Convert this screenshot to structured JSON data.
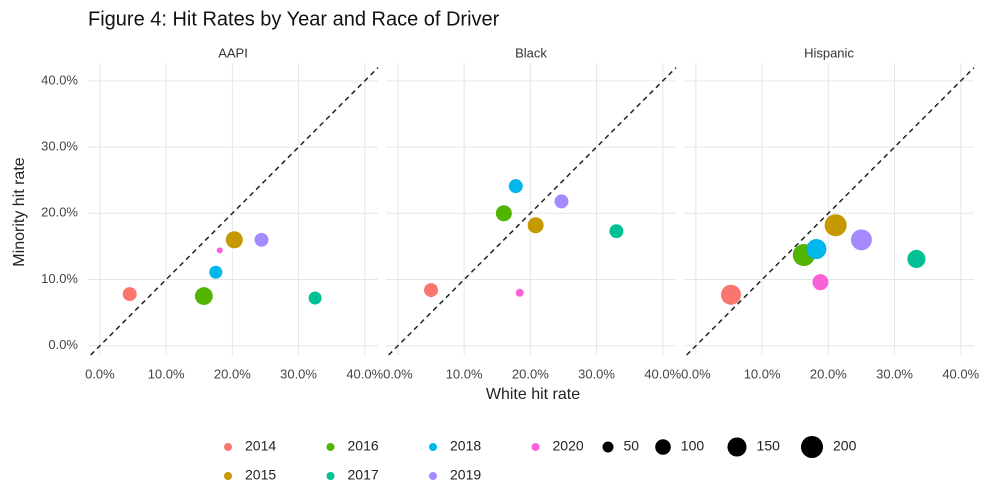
{
  "chart_data": {
    "type": "scatter",
    "title": "Figure 4: Hit Rates by Year and Race of Driver",
    "facets": [
      "AAPI",
      "Black",
      "Hispanic"
    ],
    "x_label": "White hit rate",
    "y_label": "Minority hit rate",
    "xlim": [
      -1.8,
      42
    ],
    "ylim": [
      -1.4,
      42.7
    ],
    "xticks": [
      {
        "value": 0,
        "label": "0.0%"
      },
      {
        "value": 10,
        "label": "10.0%"
      },
      {
        "value": 20,
        "label": "20.0%"
      },
      {
        "value": 30,
        "label": "30.0%"
      },
      {
        "value": 40,
        "label": "40.0%"
      }
    ],
    "yticks": [
      {
        "value": 0,
        "label": "0.0%"
      },
      {
        "value": 10,
        "label": "10.0%"
      },
      {
        "value": 20,
        "label": "20.0%"
      },
      {
        "value": 30,
        "label": "30.0%"
      },
      {
        "value": 40,
        "label": "40.0%"
      }
    ],
    "grid": true,
    "size_legend": [
      50,
      100,
      150,
      200
    ],
    "series": [
      {
        "name": "2014",
        "color": "#F8766D",
        "x": [
          4.5,
          5.0,
          5.3
        ],
        "values": [
          7.8,
          8.4,
          7.7
        ],
        "sizes": [
          80,
          80,
          165
        ]
      },
      {
        "name": "2015",
        "color": "#C49A00",
        "x": [
          20.3,
          20.8,
          21.1
        ],
        "values": [
          16.0,
          18.2,
          18.2
        ],
        "sizes": [
          120,
          105,
          200
        ]
      },
      {
        "name": "2016",
        "color": "#53B400",
        "x": [
          15.7,
          16.0,
          16.3
        ],
        "values": [
          7.5,
          20.0,
          13.7
        ],
        "sizes": [
          130,
          105,
          200
        ]
      },
      {
        "name": "2017",
        "color": "#00C094",
        "x": [
          32.5,
          33.0,
          33.3
        ],
        "values": [
          7.2,
          17.3,
          13.1
        ],
        "sizes": [
          70,
          80,
          135
        ]
      },
      {
        "name": "2018",
        "color": "#00B6EB",
        "x": [
          17.5,
          17.8,
          18.2
        ],
        "values": [
          11.1,
          24.1,
          14.6
        ],
        "sizes": [
          70,
          80,
          165
        ]
      },
      {
        "name": "2019",
        "color": "#A58AFF",
        "x": [
          24.4,
          24.7,
          25.0
        ],
        "values": [
          16.0,
          21.8,
          16.0
        ],
        "sizes": [
          80,
          80,
          180
        ]
      },
      {
        "name": "2020",
        "color": "#FB61D7",
        "x": [
          18.1,
          18.4,
          18.8
        ],
        "values": [
          14.4,
          8.0,
          9.6
        ],
        "sizes": [
          15,
          26,
          105
        ]
      }
    ]
  }
}
